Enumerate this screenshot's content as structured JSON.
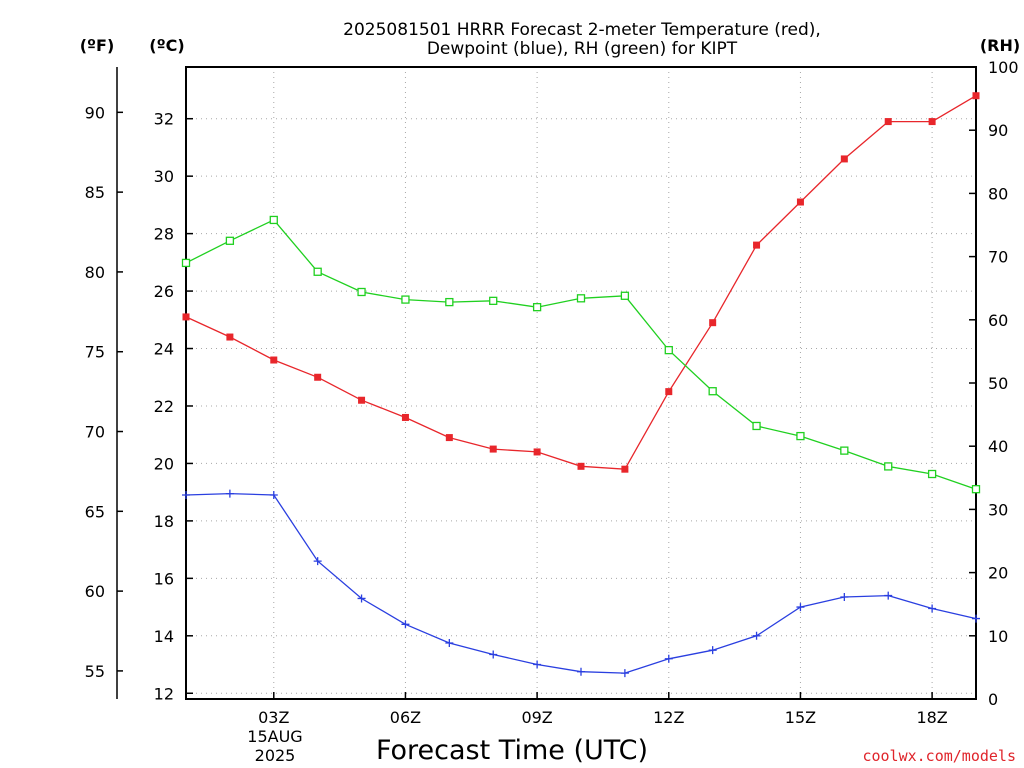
{
  "chart_data": {
    "type": "line",
    "title_line1": "2025081501 HRRR Forecast 2-meter Temperature (red),",
    "title_line2": "Dewpoint (blue), RH (green) for KIPT",
    "xlabel": "Forecast Time (UTC)",
    "date_line1": "15AUG",
    "date_line2": "2025",
    "credit": "coolwx.com/models",
    "unit_f": "(ºF)",
    "unit_c": "(ºC)",
    "unit_rh": "(RH)",
    "x_hours": [
      1,
      2,
      3,
      4,
      5,
      6,
      7,
      8,
      9,
      10,
      11,
      12,
      13,
      14,
      15,
      16,
      17,
      18,
      19
    ],
    "x_ticks": [
      {
        "hour": 3,
        "label": "03Z"
      },
      {
        "hour": 6,
        "label": "06Z"
      },
      {
        "hour": 9,
        "label": "09Z"
      },
      {
        "hour": 12,
        "label": "12Z"
      },
      {
        "hour": 15,
        "label": "15Z"
      },
      {
        "hour": 18,
        "label": "18Z"
      }
    ],
    "xlim": [
      1,
      19
    ],
    "celsius_axis": {
      "range": [
        11.8,
        33.8
      ],
      "ticks": [
        12,
        14,
        16,
        18,
        20,
        22,
        24,
        26,
        28,
        30,
        32
      ]
    },
    "fahrenheit_axis": {
      "ticks": [
        55,
        60,
        65,
        70,
        75,
        80,
        85,
        90
      ]
    },
    "rh_axis": {
      "range": [
        0,
        100
      ],
      "ticks": [
        0,
        10,
        20,
        30,
        40,
        50,
        60,
        70,
        80,
        90,
        100
      ]
    },
    "series": [
      {
        "name": "Temperature (red)",
        "axis": "celsius",
        "color": "#e8262b",
        "marker": "filled-square",
        "values": [
          25.1,
          24.4,
          23.6,
          23.0,
          22.2,
          21.6,
          20.9,
          20.5,
          20.4,
          19.9,
          19.8,
          22.5,
          24.9,
          27.6,
          29.1,
          30.6,
          31.9,
          31.9,
          32.8
        ]
      },
      {
        "name": "Dewpoint (blue)",
        "axis": "celsius",
        "color": "#2a3fe0",
        "marker": "plus",
        "values": [
          18.9,
          18.95,
          18.9,
          16.6,
          15.3,
          14.4,
          13.75,
          13.35,
          13.0,
          12.75,
          12.7,
          13.2,
          13.5,
          14.0,
          15.0,
          15.35,
          15.4,
          14.95,
          14.6
        ]
      },
      {
        "name": "RH (green)",
        "axis": "rh",
        "color": "#20d020",
        "marker": "open-square",
        "values": [
          69,
          72.5,
          75.8,
          67.6,
          64.4,
          63.2,
          62.8,
          63.0,
          62.0,
          63.4,
          63.8,
          55.2,
          48.7,
          43.2,
          41.6,
          39.3,
          36.8,
          35.6,
          33.2
        ]
      }
    ]
  }
}
